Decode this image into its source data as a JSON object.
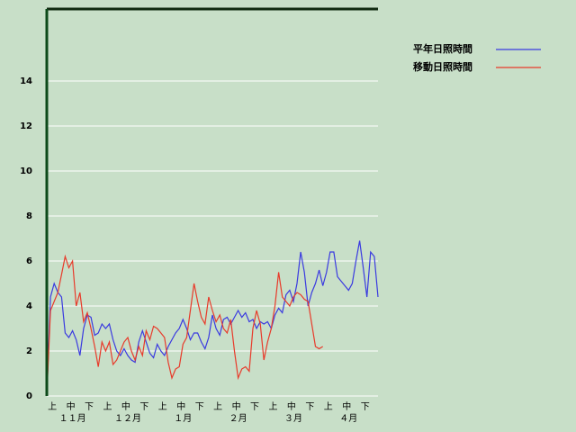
{
  "chart_data": {
    "type": "line",
    "x": [
      0,
      2,
      4,
      6,
      8,
      10,
      12,
      14,
      16,
      18,
      20,
      22,
      24,
      26,
      28,
      30,
      32,
      34,
      36,
      38,
      40,
      42,
      44,
      46,
      48,
      50,
      52,
      54,
      56,
      58,
      60,
      62,
      64,
      66,
      68,
      70,
      72,
      74,
      76,
      78,
      80,
      82,
      84,
      86,
      88,
      90,
      92,
      94,
      96,
      98,
      100,
      102,
      104,
      106,
      108,
      110,
      112,
      114,
      116,
      118,
      120,
      122,
      124,
      126,
      128,
      130,
      132,
      134,
      136,
      138,
      140,
      142,
      144,
      146,
      148,
      150,
      152,
      154,
      156,
      158,
      160,
      162,
      164,
      166,
      168,
      170,
      172,
      174,
      176,
      178,
      180
    ],
    "series": [
      {
        "name": "平年日照時間",
        "color": "#3a3ae0",
        "values": [
          0,
          4.4,
          5.0,
          4.6,
          4.4,
          2.8,
          2.6,
          2.9,
          2.5,
          1.8,
          3.0,
          3.6,
          3.5,
          2.7,
          2.8,
          3.2,
          3.0,
          3.2,
          2.5,
          2.0,
          1.8,
          2.1,
          1.8,
          1.6,
          1.5,
          2.4,
          2.9,
          2.4,
          1.9,
          1.7,
          2.3,
          2.0,
          1.8,
          2.2,
          2.5,
          2.8,
          3.0,
          3.4,
          3.0,
          2.5,
          2.8,
          2.8,
          2.4,
          2.1,
          2.6,
          3.6,
          3.0,
          2.7,
          3.4,
          3.5,
          3.2,
          3.5,
          3.8,
          3.5,
          3.7,
          3.3,
          3.4,
          3.0,
          3.3,
          3.2,
          3.3,
          3.0,
          3.6,
          3.9,
          3.7,
          4.5,
          4.7,
          4.2,
          5.0,
          6.4,
          5.5,
          4.0,
          4.6,
          5.0,
          5.6,
          4.9,
          5.5,
          6.4,
          6.4,
          5.3,
          5.1,
          4.9,
          4.7,
          5.0,
          6.0,
          6.9,
          5.7,
          4.4,
          6.4,
          6.2,
          4.4
        ]
      },
      {
        "name": "移動日照時間",
        "color": "#e83a2a",
        "values": [
          0,
          3.8,
          4.2,
          4.6,
          5.4,
          6.2,
          5.7,
          6.0,
          4.0,
          4.6,
          3.3,
          3.7,
          3.0,
          2.2,
          1.3,
          2.4,
          2.0,
          2.4,
          1.4,
          1.6,
          2.0,
          2.4,
          2.6,
          2.0,
          1.6,
          2.2,
          1.8,
          2.9,
          2.5,
          3.1,
          3.0,
          2.8,
          2.6,
          1.5,
          0.8,
          1.2,
          1.3,
          2.3,
          2.6,
          3.8,
          5.0,
          4.2,
          3.5,
          3.2,
          4.4,
          3.8,
          3.3,
          3.6,
          3.0,
          2.8,
          3.4,
          2.0,
          0.8,
          1.2,
          1.3,
          1.1,
          3.0,
          3.8,
          3.2,
          1.6,
          2.4,
          3.0,
          4.0,
          5.5,
          4.4,
          4.2,
          4.0,
          4.4,
          4.6,
          4.5,
          4.3,
          4.2,
          3.2,
          2.2,
          2.1,
          2.2,
          null,
          null,
          null,
          null,
          null,
          null,
          null,
          null,
          null,
          null,
          null,
          null,
          null,
          null,
          null
        ]
      }
    ],
    "xlim": [
      0,
      180
    ],
    "xticks": [
      {
        "value": 3,
        "label": "上"
      },
      {
        "value": 13,
        "label": "中"
      },
      {
        "value": 23,
        "label": "下"
      },
      {
        "value": 33,
        "label": "上"
      },
      {
        "value": 43,
        "label": "中"
      },
      {
        "value": 53,
        "label": "下"
      },
      {
        "value": 63,
        "label": "上"
      },
      {
        "value": 73,
        "label": "中"
      },
      {
        "value": 83,
        "label": "下"
      },
      {
        "value": 93,
        "label": "上"
      },
      {
        "value": 103,
        "label": "中"
      },
      {
        "value": 113,
        "label": "下"
      },
      {
        "value": 123,
        "label": "上"
      },
      {
        "value": 133,
        "label": "中"
      },
      {
        "value": 143,
        "label": "下"
      },
      {
        "value": 153,
        "label": "上"
      },
      {
        "value": 163,
        "label": "中"
      },
      {
        "value": 173,
        "label": "下"
      }
    ],
    "month_ticks": [
      {
        "value": 14,
        "label": "１１月"
      },
      {
        "value": 44,
        "label": "１２月"
      },
      {
        "value": 74,
        "label": "１月"
      },
      {
        "value": 104,
        "label": "２月"
      },
      {
        "value": 134,
        "label": "３月"
      },
      {
        "value": 164,
        "label": "４月"
      }
    ],
    "ylim": [
      0,
      17.2
    ],
    "yticks": [
      0,
      2,
      4,
      6,
      8,
      10,
      12,
      14
    ],
    "grid": true
  }
}
